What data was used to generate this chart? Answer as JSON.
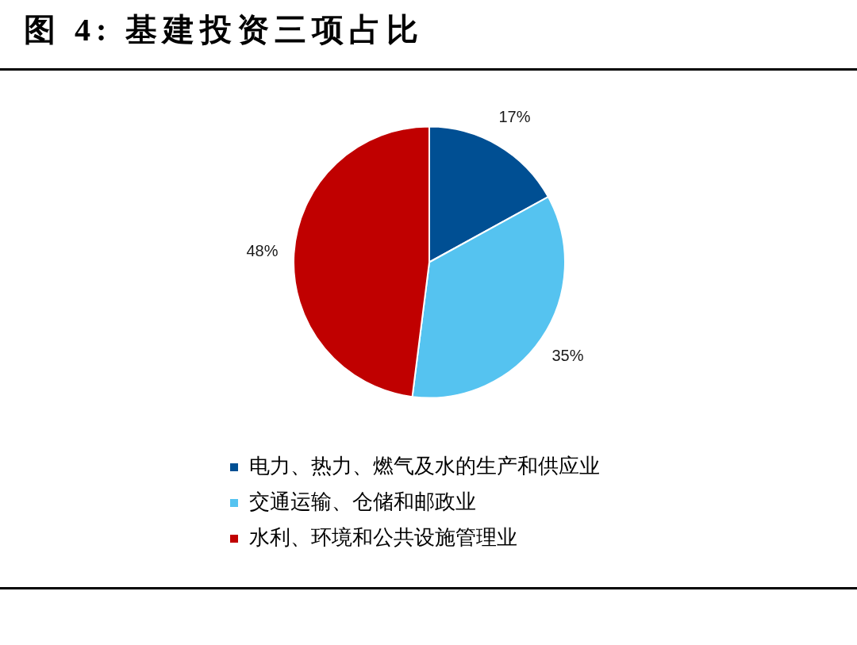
{
  "chart_data": {
    "type": "pie",
    "title": "图 4: 基建投资三项占比",
    "categories": [
      "电力、热力、燃气及水的生产和供应业",
      "交通运输、仓储和邮政业",
      "水利、环境和公共设施管理业"
    ],
    "values": [
      17,
      35,
      48
    ],
    "colors": [
      "#004f93",
      "#55c3f0",
      "#c00000"
    ],
    "value_labels": [
      "17%",
      "35%",
      "48%"
    ],
    "legend": "bottom"
  }
}
